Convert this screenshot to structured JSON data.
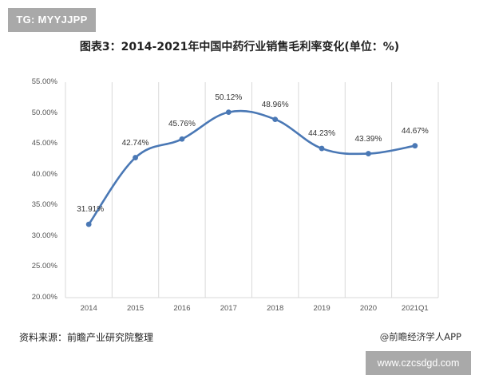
{
  "watermark_top": "TG: MYYJJPP",
  "watermark_bottom": "www.czcsdgd.com",
  "source": "资料来源：前瞻产业研究院整理",
  "credit": "@前瞻经济学人APP",
  "colors": {
    "line": "#4a78b5",
    "grid": "#d9d9d9",
    "badge": "#a9a9a9"
  },
  "chart_data": {
    "type": "line",
    "title": "图表3：2014-2021年中国中药行业销售毛利率变化(单位：%)",
    "xlabel": "",
    "ylabel": "",
    "categories": [
      "2014",
      "2015",
      "2016",
      "2017",
      "2018",
      "2019",
      "2020",
      "2021Q1"
    ],
    "series": [
      {
        "name": "销售毛利率",
        "values": [
          31.91,
          42.74,
          45.76,
          50.12,
          48.96,
          44.23,
          43.39,
          44.67
        ]
      }
    ],
    "data_labels": [
      "31.91%",
      "42.74%",
      "45.76%",
      "50.12%",
      "48.96%",
      "44.23%",
      "43.39%",
      "44.67%"
    ],
    "yticks": [
      "55.00%",
      "50.00%",
      "45.00%",
      "40.00%",
      "35.00%",
      "30.00%",
      "25.00%",
      "20.00%"
    ],
    "ylim": [
      20,
      55
    ],
    "grid": "vertical",
    "legend": "none",
    "smooth": true
  }
}
